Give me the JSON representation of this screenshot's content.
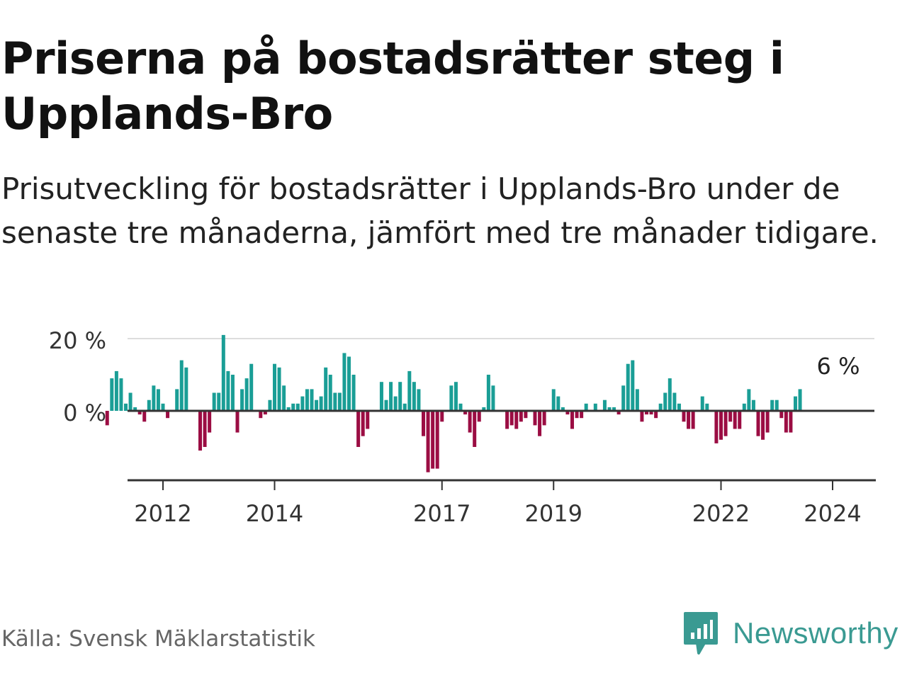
{
  "header": {
    "title": "Priserna på bostadsrätter steg i Upplands-Bro",
    "subtitle": "Prisutveckling för bostadsrätter i Upplands-Bro under de senaste tre månaderna, jämfört med tre månader tidigare."
  },
  "footer": {
    "source": "Källa: Svensk Mäklarstatistik",
    "brand": "Newsworthy"
  },
  "colors": {
    "positive": "#1a9e96",
    "negative": "#9b0d43",
    "zero_line": "#333333",
    "grid": "#dddddd",
    "brand": "#3a9a92"
  },
  "chart_data": {
    "type": "bar",
    "title": "Priserna på bostadsrätter steg i Upplands-Bro",
    "subtitle": "Prisutveckling för bostadsrätter i Upplands-Bro under de senaste tre månaderna, jämfört med tre månader tidigare.",
    "xlabel": "",
    "ylabel": "",
    "unit": "%",
    "ylim": [
      -19,
      20
    ],
    "y_ticks": [
      {
        "value": 0,
        "label": "0 %"
      },
      {
        "value": 20,
        "label": "20 %"
      }
    ],
    "start": {
      "year": 2011,
      "month": 1
    },
    "x_ticks": [
      {
        "value": 2012,
        "label": "2012"
      },
      {
        "value": 2014,
        "label": "2014"
      },
      {
        "value": 2017,
        "label": "2017"
      },
      {
        "value": 2019,
        "label": "2019"
      },
      {
        "value": 2022,
        "label": "2022"
      },
      {
        "value": 2024,
        "label": "2024"
      }
    ],
    "annotation": {
      "label": "6 %",
      "value": 6
    },
    "values": [
      -4,
      9,
      11,
      9,
      2,
      5,
      1,
      -1,
      -3,
      3,
      7,
      6,
      2,
      -2,
      null,
      6,
      14,
      12,
      null,
      null,
      -11,
      -10,
      -6,
      5,
      5,
      21,
      11,
      10,
      -6,
      6,
      9,
      13,
      null,
      -2,
      -1,
      3,
      13,
      12,
      7,
      1,
      2,
      2,
      4,
      6,
      6,
      3,
      4,
      12,
      10,
      5,
      5,
      16,
      15,
      10,
      -10,
      -7,
      -5,
      null,
      null,
      8,
      3,
      8,
      4,
      8,
      2,
      11,
      8,
      6,
      -7,
      -17,
      -16,
      -16,
      -3,
      null,
      7,
      8,
      2,
      -1,
      -6,
      -10,
      -3,
      1,
      10,
      7,
      null,
      null,
      -5,
      -4,
      -5,
      -3,
      -2,
      null,
      -4,
      -7,
      -4,
      null,
      6,
      4,
      1,
      -1,
      -5,
      -2,
      -2,
      2,
      null,
      2,
      null,
      3,
      1,
      1,
      -1,
      7,
      13,
      14,
      6,
      -3,
      -1,
      -1,
      -2,
      2,
      5,
      9,
      5,
      2,
      -3,
      -5,
      -5,
      null,
      4,
      2,
      null,
      -9,
      -8,
      -7,
      -3,
      -5,
      -5,
      2,
      6,
      3,
      -7,
      -8,
      -6,
      3,
      3,
      -2,
      -6,
      -6,
      4,
      6
    ]
  }
}
